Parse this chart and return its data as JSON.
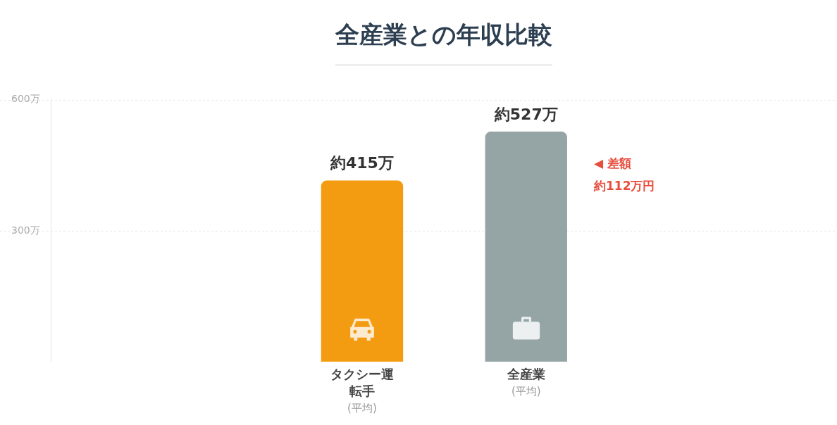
{
  "chart_data": {
    "type": "bar",
    "title": "全産業との年収比較",
    "categories": [
      "タクシー運転手\n(平均)",
      "全産業\n(平均)"
    ],
    "values": [
      415,
      527
    ],
    "colors": [
      "#f39c12",
      "#95a5a6"
    ],
    "value_labels": [
      "約415万",
      "約527万"
    ],
    "ylim": [
      0,
      600
    ],
    "yticks": [
      {
        "value": 300,
        "label": "300万"
      },
      {
        "value": 600,
        "label": "600万"
      }
    ],
    "grid": "y",
    "annotations": [
      "◀ 差額",
      "約112万円"
    ]
  }
}
